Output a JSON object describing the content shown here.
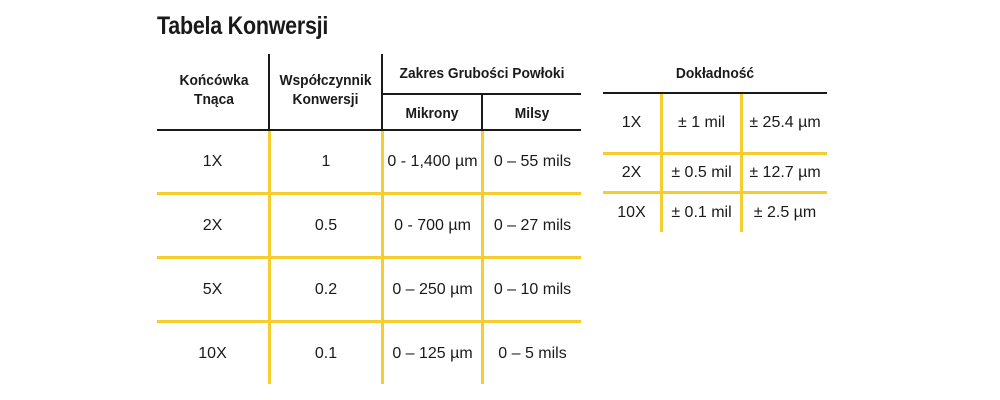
{
  "title": "Tabela Konwersji",
  "conversion_table": {
    "headers": {
      "tip": "Końcówka Tnąca",
      "factor": "Współczynnik Konwersji",
      "range_group": "Zakres Grubości Powłoki",
      "microns": "Mikrony",
      "mils": "Milsy"
    },
    "rows": [
      {
        "tip": "1X",
        "factor": "1",
        "microns": "0 - 1,400 µm",
        "mils": "0 – 55 mils"
      },
      {
        "tip": "2X",
        "factor": "0.5",
        "microns": "0 - 700 µm",
        "mils": "0 – 27 mils"
      },
      {
        "tip": "5X",
        "factor": "0.2",
        "microns": "0 – 250 µm",
        "mils": "0 – 10 mils"
      },
      {
        "tip": "10X",
        "factor": "0.1",
        "microns": "0 – 125 µm",
        "mils": "0 – 5 mils"
      }
    ]
  },
  "accuracy_table": {
    "header": "Dokładność",
    "rows": [
      {
        "tip": "1X",
        "mil": "± 1 mil",
        "um": "± 25.4 µm"
      },
      {
        "tip": "2X",
        "mil": "± 0.5 mil",
        "um": "± 12.7 µm"
      },
      {
        "tip": "10X",
        "mil": "± 0.1 mil",
        "um": "± 2.5 µm"
      }
    ]
  },
  "colors": {
    "accent": "#f5cd2f",
    "rule": "#1a1a1a",
    "text": "#1a1a1a"
  }
}
